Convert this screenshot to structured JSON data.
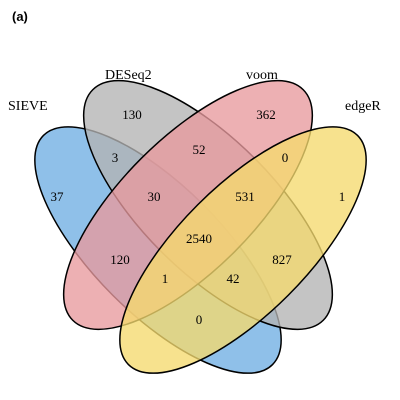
{
  "panel_label": "(a)",
  "sets": [
    {
      "name": "SIEVE",
      "color": "#6FAEE3"
    },
    {
      "name": "DESeq2",
      "color": "#B4B4B4"
    },
    {
      "name": "voom",
      "color": "#E89A9E"
    },
    {
      "name": "edgeR",
      "color": "#F5DA6E"
    }
  ],
  "regions": {
    "sieve_only": "37",
    "deseq2_only": "130",
    "voom_only": "362",
    "edger_only": "1",
    "sieve_deseq2": "3",
    "deseq2_voom": "52",
    "voom_edger": "0",
    "sieve_deseq2_voom": "30",
    "deseq2_voom_edger": "531",
    "all_four": "2540",
    "sieve_voom": "120",
    "deseq2_edger": "827",
    "sieve_voom_edger": "1",
    "sieve_deseq2_edger": "42",
    "sieve_edger": "0"
  }
}
